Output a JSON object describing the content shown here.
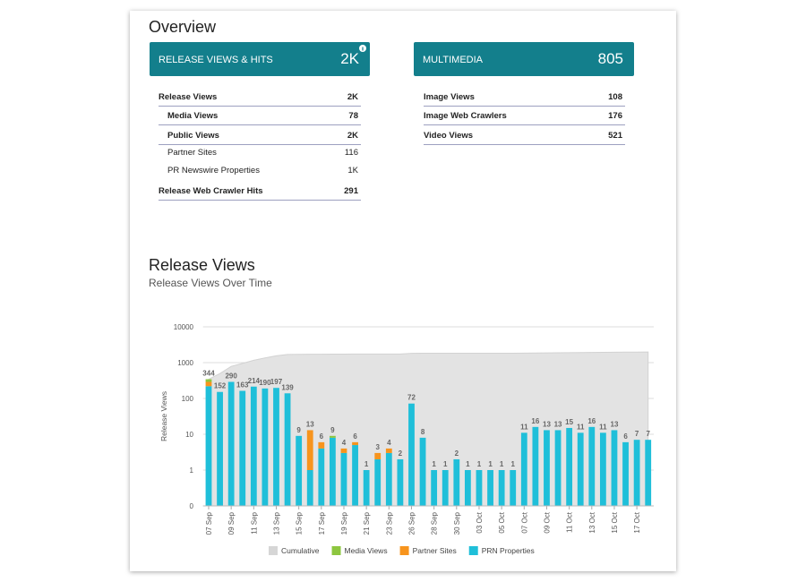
{
  "overview": {
    "title": "Overview",
    "cards": [
      {
        "label": "RELEASE VIEWS & HITS",
        "value": "2K"
      },
      {
        "label": "MULTIMEDIA",
        "value": "805"
      }
    ],
    "tables": [
      [
        [
          "Release Views",
          "2K"
        ],
        [
          "Media Views",
          "78"
        ],
        [
          "Public Views",
          "2K"
        ],
        [
          "Partner Sites",
          "116"
        ],
        [
          "PR Newswire Properties",
          "1K"
        ],
        [
          "Release Web Crawler Hits",
          "291"
        ]
      ],
      [
        [
          "Image Views",
          "108"
        ],
        [
          "Image Web Crawlers",
          "176"
        ],
        [
          "Video Views",
          "521"
        ]
      ]
    ]
  },
  "chart_data": {
    "type": "bar",
    "title": "Release Views",
    "subtitle": "Release Views Over Time",
    "y_label": "Release Views",
    "log_scale": true,
    "grid": true,
    "legend": "bottom",
    "categories": [
      "07 Sep",
      null,
      "09 Sep",
      null,
      "11 Sep",
      null,
      "13 Sep",
      null,
      "15 Sep",
      null,
      "17 Sep",
      null,
      "19 Sep",
      null,
      "21 Sep",
      null,
      "23 Sep",
      null,
      "26 Sep",
      null,
      "28 Sep",
      null,
      "30 Sep",
      null,
      "03 Oct",
      null,
      "05 Oct",
      null,
      "07 Oct",
      null,
      "09 Oct",
      null,
      "11 Oct",
      null,
      "13 Oct",
      null,
      "15 Oct",
      null,
      "17 Oct",
      null
    ],
    "series": [
      {
        "name": "Cumulative",
        "type": "area",
        "color": "#e3e3e3",
        "values": [
          344,
          496,
          786,
          949,
          1163,
          1353,
          1550,
          1689,
          1698,
          1711,
          1717,
          1726,
          1730,
          1736,
          1737,
          1740,
          1744,
          1746,
          1818,
          1826,
          1827,
          1828,
          1830,
          1831,
          1832,
          1833,
          1834,
          1835,
          1846,
          1862,
          1875,
          1888,
          1903,
          1914,
          1930,
          1941,
          1954,
          1960,
          1967,
          1974
        ]
      },
      {
        "name": "Media Views",
        "type": "bar",
        "color": "#8dc63f",
        "values": [
          54,
          null,
          null,
          null,
          null,
          null,
          null,
          null,
          null,
          null,
          null,
          1,
          null,
          null,
          null,
          null,
          null,
          null,
          null,
          null,
          null,
          null,
          null,
          null,
          null,
          null,
          null,
          null,
          null,
          null,
          null,
          null,
          null,
          null,
          null,
          null,
          null,
          null,
          null,
          null
        ]
      },
      {
        "name": "Partner Sites",
        "type": "bar",
        "color": "#f7941d",
        "values": [
          70,
          null,
          null,
          null,
          null,
          null,
          null,
          null,
          null,
          12,
          2,
          null,
          1,
          1,
          null,
          1,
          1,
          null,
          null,
          null,
          null,
          null,
          null,
          null,
          null,
          null,
          null,
          null,
          null,
          null,
          null,
          null,
          null,
          null,
          null,
          null,
          null,
          null,
          null,
          null
        ]
      },
      {
        "name": "PRN Properties",
        "type": "bar",
        "color": "#1fbfd9",
        "values": [
          220,
          152,
          290,
          163,
          214,
          190,
          197,
          139,
          9,
          1,
          4,
          8,
          3,
          5,
          1,
          2,
          3,
          2,
          72,
          8,
          1,
          1,
          2,
          1,
          1,
          1,
          1,
          1,
          11,
          16,
          13,
          13,
          15,
          11,
          16,
          11,
          13,
          6,
          7,
          7
        ]
      }
    ],
    "totals": [
      344,
      152,
      290,
      163,
      214,
      190,
      197,
      139,
      9,
      13,
      6,
      9,
      4,
      6,
      1,
      3,
      4,
      2,
      72,
      8,
      1,
      1,
      2,
      1,
      1,
      1,
      1,
      1,
      11,
      16,
      13,
      13,
      15,
      11,
      16,
      11,
      13,
      6,
      7,
      7
    ],
    "ylim": [
      0.1,
      10000
    ],
    "yticks": [
      {
        "value": 0.1,
        "label": "0"
      },
      1,
      10,
      100,
      1000,
      10000
    ]
  }
}
